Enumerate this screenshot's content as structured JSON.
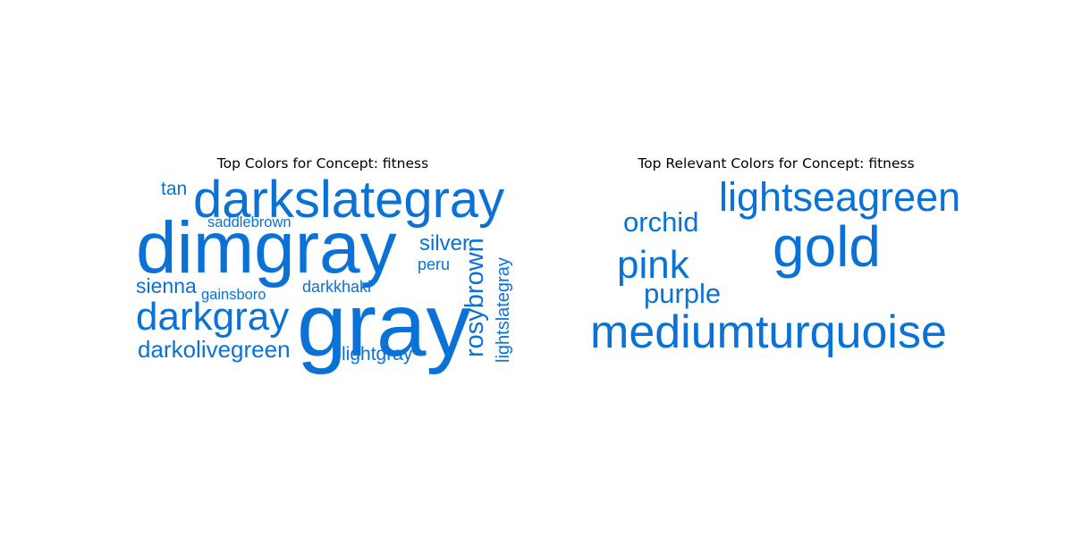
{
  "chart_data": [
    {
      "type": "wordcloud",
      "title": "Top Colors for Concept: fitness",
      "color": "#0a72d6",
      "words": [
        {
          "text": "dimgray",
          "weight": 100
        },
        {
          "text": "gray",
          "weight": 96
        },
        {
          "text": "darkslategray",
          "weight": 62
        },
        {
          "text": "darkgray",
          "weight": 50
        },
        {
          "text": "rosybrown",
          "weight": 36,
          "orientation": "vertical"
        },
        {
          "text": "darkolivegreen",
          "weight": 34
        },
        {
          "text": "silver",
          "weight": 30
        },
        {
          "text": "sienna",
          "weight": 29
        },
        {
          "text": "lightslategray",
          "weight": 27,
          "orientation": "vertical"
        },
        {
          "text": "tan",
          "weight": 27
        },
        {
          "text": "lightgray",
          "weight": 27
        },
        {
          "text": "peru",
          "weight": 24
        },
        {
          "text": "darkkhaki",
          "weight": 23
        },
        {
          "text": "saddlebrown",
          "weight": 22
        },
        {
          "text": "gainsboro",
          "weight": 22
        }
      ]
    },
    {
      "type": "wordcloud",
      "title": "Top Relevant Colors for Concept: fitness",
      "color": "#0a72d6",
      "words": [
        {
          "text": "gold",
          "weight": 100
        },
        {
          "text": "mediumturquoise",
          "weight": 82
        },
        {
          "text": "lightseagreen",
          "weight": 72
        },
        {
          "text": "pink",
          "weight": 66
        },
        {
          "text": "orchid",
          "weight": 50
        },
        {
          "text": "purple",
          "weight": 50
        }
      ]
    }
  ]
}
